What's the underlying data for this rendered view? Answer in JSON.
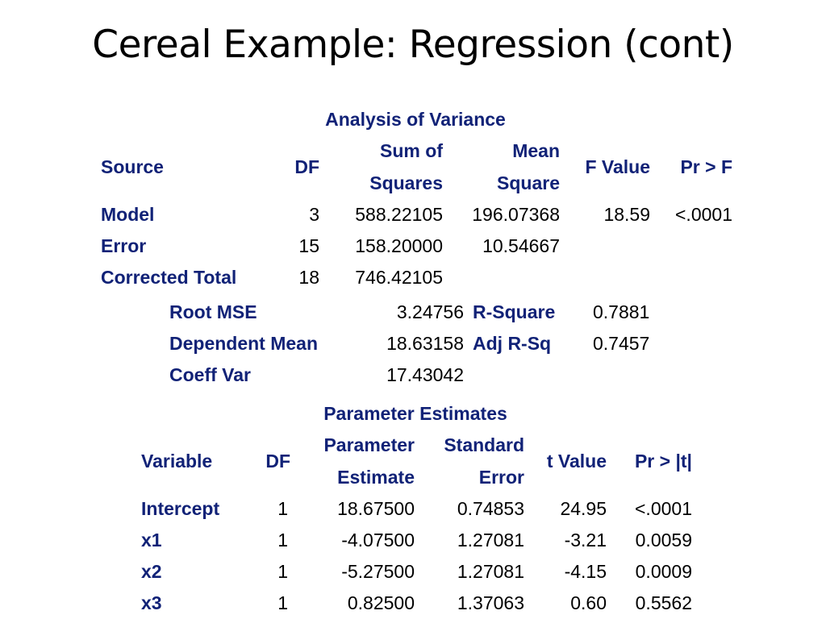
{
  "title": "Cereal Example: Regression (cont)",
  "colors": {
    "header_text": "#112277",
    "body_text": "#000000",
    "background": "#ffffff"
  },
  "anova": {
    "caption": "Analysis of Variance",
    "headers": {
      "source": "Source",
      "df": "DF",
      "ss_line1": "Sum of",
      "ss_line2": "Squares",
      "ms_line1": "Mean",
      "ms_line2": "Square",
      "f_value": "F Value",
      "pr_f": "Pr > F"
    },
    "rows": [
      {
        "source": "Model",
        "df": "3",
        "ss": "588.22105",
        "ms": "196.07368",
        "f": "18.59",
        "p": "<.0001"
      },
      {
        "source": "Error",
        "df": "15",
        "ss": "158.20000",
        "ms": "10.54667",
        "f": "",
        "p": ""
      },
      {
        "source": "Corrected Total",
        "df": "18",
        "ss": "746.42105",
        "ms": "",
        "f": "",
        "p": ""
      }
    ]
  },
  "fit": {
    "rows": [
      {
        "label": "Root MSE",
        "value": "3.24756",
        "label2": "R-Square",
        "value2": "0.7881"
      },
      {
        "label": "Dependent Mean",
        "value": "18.63158",
        "label2": "Adj R-Sq",
        "value2": "0.7457"
      },
      {
        "label": "Coeff Var",
        "value": "17.43042",
        "label2": "",
        "value2": ""
      }
    ]
  },
  "params": {
    "caption": "Parameter Estimates",
    "headers": {
      "variable": "Variable",
      "df": "DF",
      "est_line1": "Parameter",
      "est_line2": "Estimate",
      "se_line1": "Standard",
      "se_line2": "Error",
      "t_value": "t Value",
      "pr_t": "Pr > |t|"
    },
    "rows": [
      {
        "variable": "Intercept",
        "df": "1",
        "estimate": "18.67500",
        "se": "0.74853",
        "t": "24.95",
        "p": "<.0001"
      },
      {
        "variable": "x1",
        "df": "1",
        "estimate": "-4.07500",
        "se": "1.27081",
        "t": "-3.21",
        "p": "0.0059"
      },
      {
        "variable": "x2",
        "df": "1",
        "estimate": "-5.27500",
        "se": "1.27081",
        "t": "-4.15",
        "p": "0.0009"
      },
      {
        "variable": "x3",
        "df": "1",
        "estimate": "0.82500",
        "se": "1.37063",
        "t": "0.60",
        "p": "0.5562"
      }
    ]
  }
}
